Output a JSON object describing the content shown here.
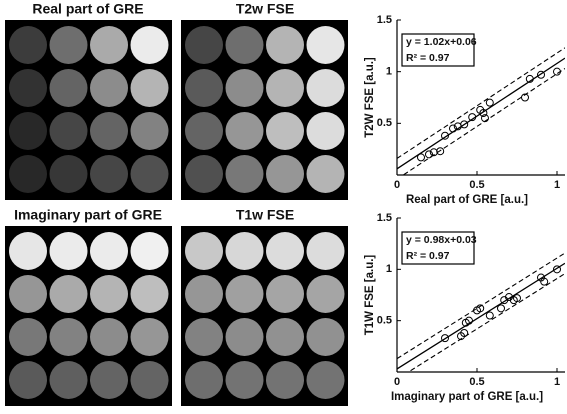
{
  "panels": [
    {
      "title": "Real part of GRE"
    },
    {
      "title": "T2w FSE"
    },
    {
      "title": "Imaginary part of GRE"
    },
    {
      "title": "T1w FSE"
    }
  ],
  "chart_data": [
    {
      "type": "scatter",
      "xlabel": "Real part of GRE [a.u.]",
      "ylabel": "T2W FSE [a.u.]",
      "annotations": [
        "y = 1.02x+0.06",
        "R² = 0.97"
      ],
      "fit": {
        "slope": 1.02,
        "intercept": 0.06
      },
      "band": 0.1,
      "x": [
        0.15,
        0.2,
        0.23,
        0.27,
        0.3,
        0.35,
        0.38,
        0.42,
        0.47,
        0.52,
        0.54,
        0.55,
        0.58,
        0.8,
        0.83,
        0.9,
        1.0
      ],
      "values": [
        0.17,
        0.2,
        0.22,
        0.23,
        0.38,
        0.45,
        0.47,
        0.49,
        0.56,
        0.63,
        0.6,
        0.55,
        0.7,
        0.75,
        0.93,
        0.97,
        1.0
      ],
      "xlim": [
        0,
        1.05
      ],
      "ylim": [
        0,
        1.5
      ],
      "xticks": [
        0,
        0.5,
        1
      ],
      "yticks": [
        0.5,
        1,
        1.5
      ]
    },
    {
      "type": "scatter",
      "xlabel": "Imaginary part of GRE [a.u.]",
      "ylabel": "T1W FSE [a.u.]",
      "annotations": [
        "y = 0.98x+0.03",
        "R² = 0.97"
      ],
      "fit": {
        "slope": 0.98,
        "intercept": 0.03
      },
      "band": 0.1,
      "x": [
        0.3,
        0.4,
        0.42,
        0.43,
        0.45,
        0.5,
        0.52,
        0.58,
        0.65,
        0.67,
        0.7,
        0.73,
        0.75,
        0.9,
        0.92,
        1.0
      ],
      "values": [
        0.33,
        0.35,
        0.38,
        0.48,
        0.5,
        0.6,
        0.62,
        0.55,
        0.62,
        0.7,
        0.73,
        0.7,
        0.72,
        0.92,
        0.88,
        1.0
      ],
      "xlim": [
        0,
        1.05
      ],
      "ylim": [
        0,
        1.5
      ],
      "xticks": [
        0,
        0.5,
        1
      ],
      "yticks": [
        0.5,
        1,
        1.5
      ]
    }
  ]
}
